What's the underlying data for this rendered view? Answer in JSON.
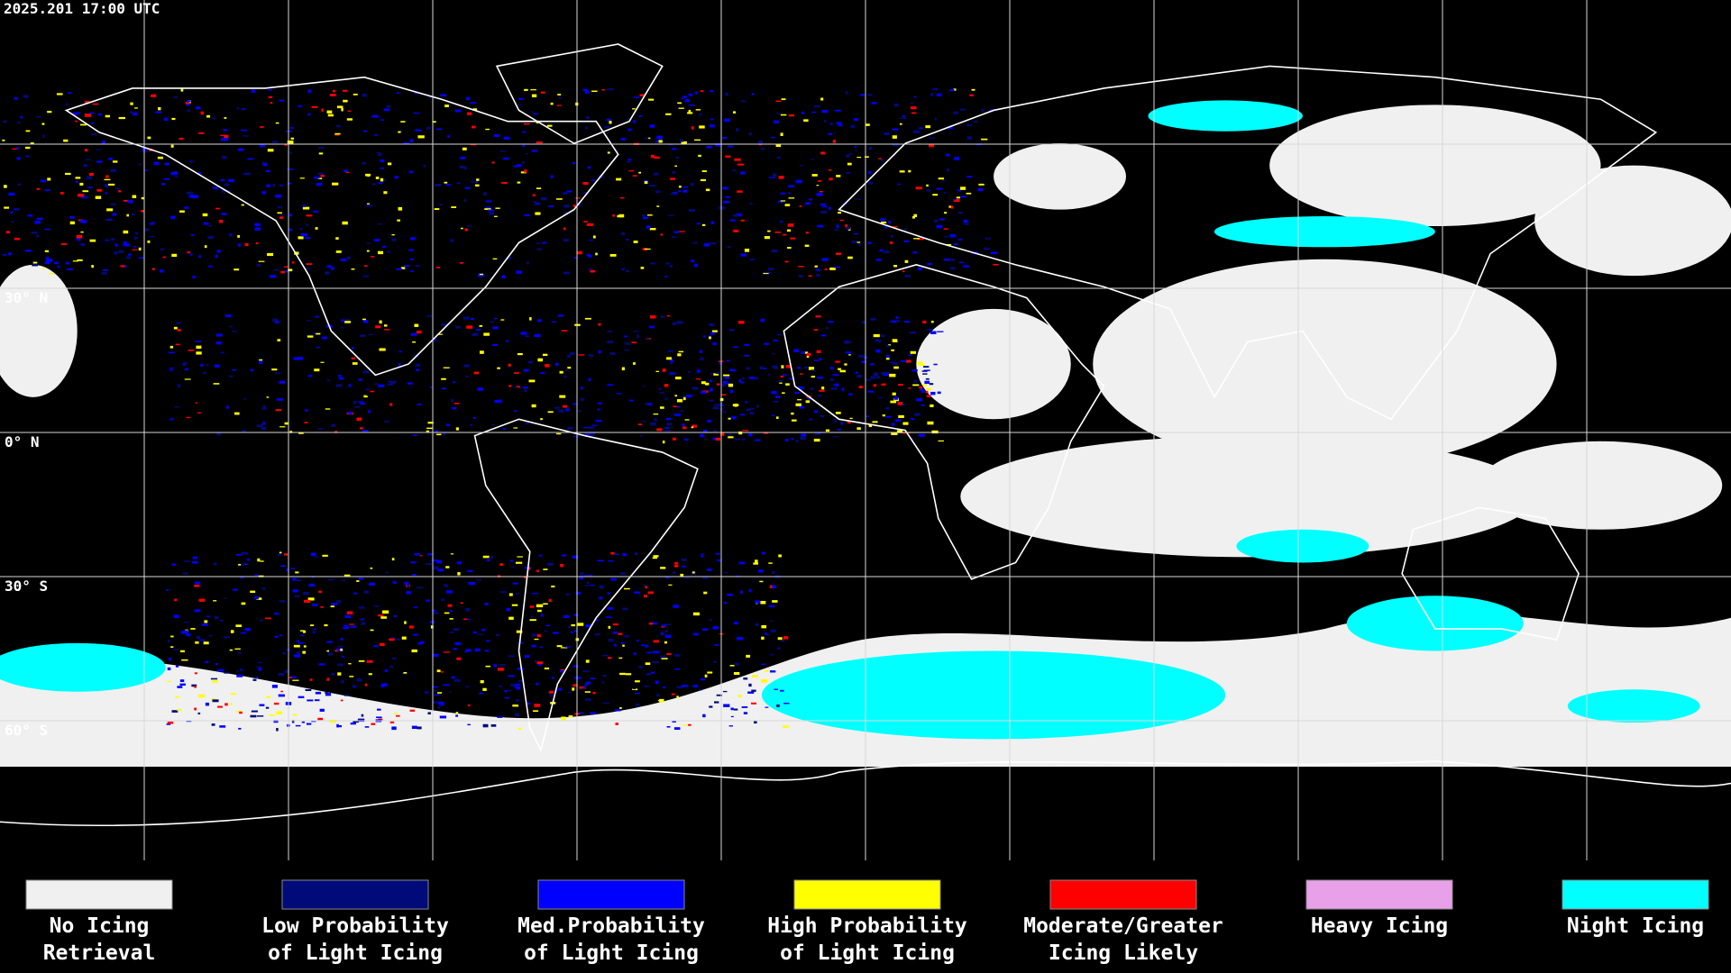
{
  "header": {
    "timestamp": "2025.201 17:00 UTC"
  },
  "map": {
    "latitude_labels": [
      "30° N",
      "0° N",
      "30° S",
      "60° S"
    ]
  },
  "legend": [
    {
      "label": [
        "No Icing",
        "Retrieval"
      ],
      "color": "#f0f0f0"
    },
    {
      "label": [
        "Low Probability",
        "of Light Icing"
      ],
      "color": "#000a78"
    },
    {
      "label": [
        "Med.Probability",
        "of Light Icing"
      ],
      "color": "#0000ff"
    },
    {
      "label": [
        "High Probability",
        "of Light Icing"
      ],
      "color": "#ffff00"
    },
    {
      "label": [
        "Moderate/Greater",
        "Icing Likely"
      ],
      "color": "#ff0000"
    },
    {
      "label": [
        "Heavy Icing"
      ],
      "color": "#e8a0e8"
    },
    {
      "label": [
        "Night Icing"
      ],
      "color": "#00ffff"
    }
  ]
}
